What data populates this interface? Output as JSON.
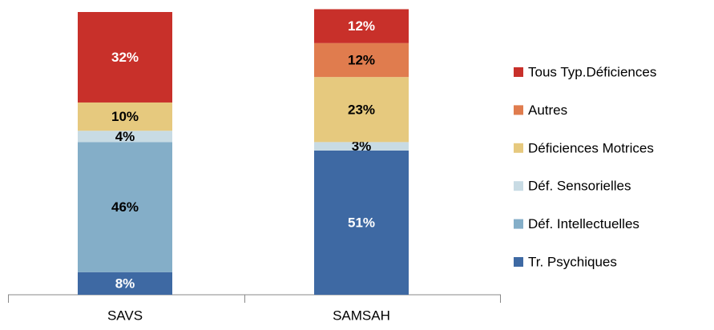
{
  "chart_data": {
    "type": "stacked_bar",
    "categories": [
      "SAVS",
      "SAMSAH"
    ],
    "series": [
      {
        "name": "Tr. Psychiques",
        "color": "#3e69a3",
        "values": [
          8,
          51
        ],
        "value_labels": [
          "8%",
          "51%"
        ]
      },
      {
        "name": "Déf. Intellectuelles",
        "color": "#84aec8",
        "values": [
          46,
          null
        ],
        "value_labels": [
          "46%",
          null
        ]
      },
      {
        "name": "Déf. Sensorielles",
        "color": "#c8dbe4",
        "values": [
          4,
          3
        ],
        "value_labels": [
          "4%",
          "3%"
        ]
      },
      {
        "name": "Déficiences Motrices",
        "color": "#e6c97e",
        "values": [
          10,
          23
        ],
        "value_labels": [
          "10%",
          "23%"
        ]
      },
      {
        "name": "Autres",
        "color": "#e07c4e",
        "values": [
          null,
          12
        ],
        "value_labels": [
          null,
          "12%"
        ]
      },
      {
        "name": "Tous Typ.Déficiences",
        "color": "#c8302a",
        "values": [
          32,
          12
        ],
        "value_labels": [
          "32%",
          "12%"
        ]
      }
    ],
    "legend": "right"
  }
}
